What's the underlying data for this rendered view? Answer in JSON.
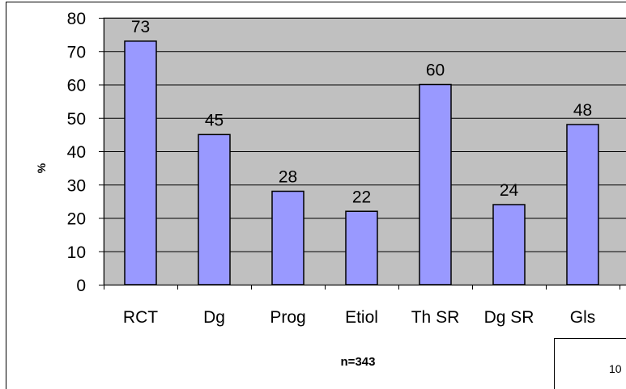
{
  "chart_data": {
    "type": "bar",
    "categories": [
      "RCT",
      "Dg",
      "Prog",
      "Etiol",
      "Th SR",
      "Dg SR",
      "Gls"
    ],
    "values": [
      73,
      45,
      28,
      22,
      60,
      24,
      48
    ],
    "data_labels": [
      "73",
      "45",
      "28",
      "22",
      "60",
      "24",
      "48"
    ],
    "yticks": [
      "0",
      "10",
      "20",
      "30",
      "40",
      "50",
      "60",
      "70",
      "80"
    ],
    "ylim": [
      0,
      80
    ],
    "ylabel": "%",
    "xlabel": "n=343",
    "title": "",
    "grid": true,
    "legend": "none",
    "colors": {
      "bar_fill": "#9999ff",
      "bar_stroke": "#000000",
      "plot_background": "#c0c0c0",
      "gridline": "#000000",
      "page_background": "#ffffff"
    }
  },
  "page_number": "10"
}
